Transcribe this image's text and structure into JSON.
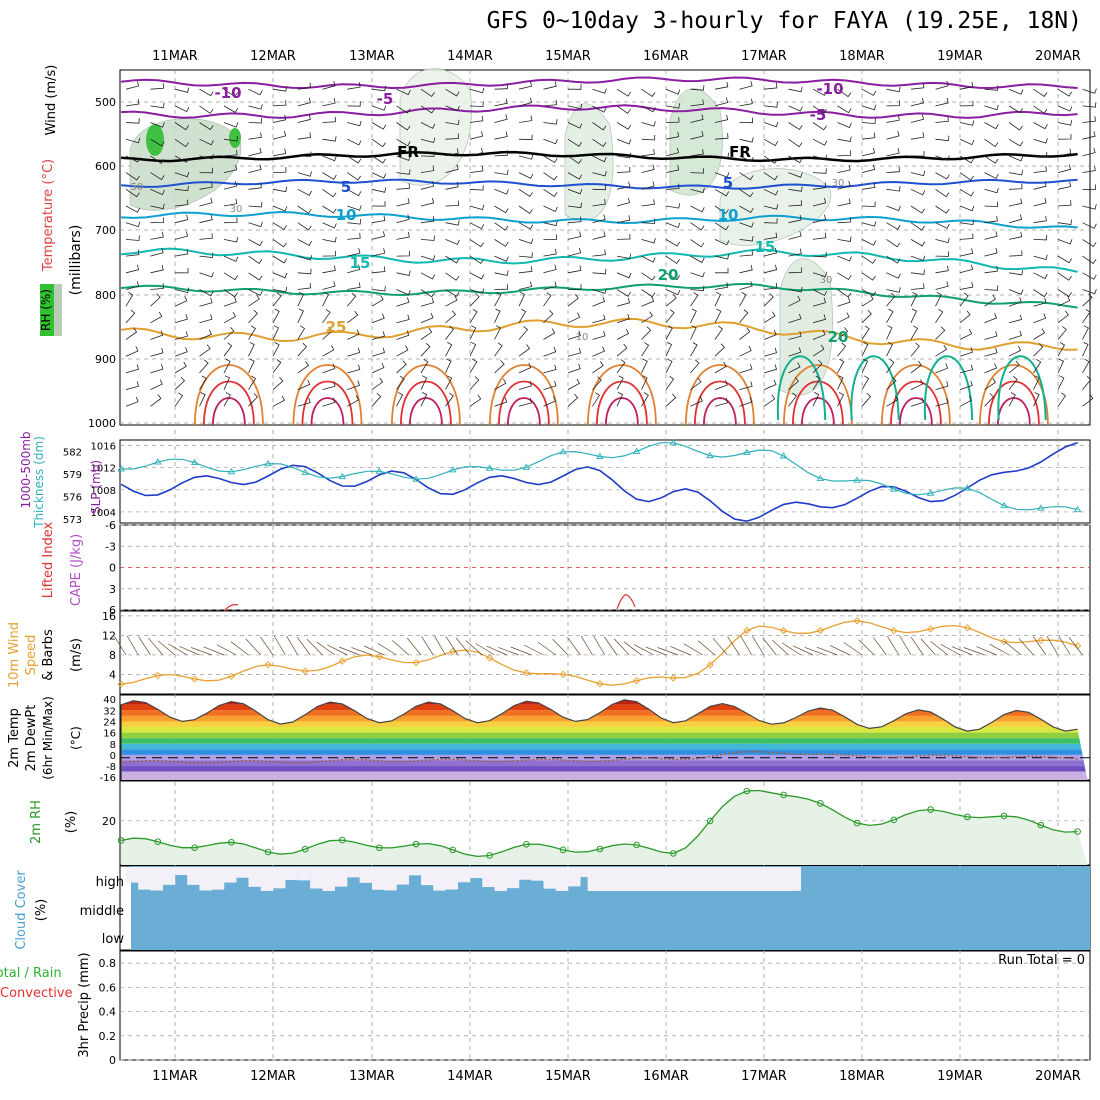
{
  "title": "GFS 0~10day 3-hourly for FAYA (19.25E, 18N)",
  "dates": [
    "11MAR",
    "12MAR",
    "13MAR",
    "14MAR",
    "15MAR",
    "16MAR",
    "17MAR",
    "18MAR",
    "19MAR",
    "20MAR"
  ],
  "colors": {
    "grid": "#999999",
    "slp": "#1e3cc8",
    "thickness": "#2fb0b8",
    "wind": "#e8a030",
    "barb": "#6b4a2a",
    "rh": "#2a9a2a",
    "cloud": "#6aaed6",
    "cloud_clear": "#f4f0f8",
    "li": "#e03030",
    "cape": "#b050c8"
  },
  "panels": {
    "upper": {
      "ylabels": [
        "Wind (m/s)",
        "Temperature (°C)",
        "RH (%)",
        "(millibars)"
      ],
      "ticks": [
        "500",
        "600",
        "700",
        "800",
        "900",
        "1000"
      ],
      "isotherm_labels": [
        "-10",
        "-10",
        "-5",
        "-5",
        "FR",
        "FR",
        "5",
        "5",
        "10",
        "10",
        "15",
        "15",
        "20",
        "20",
        "25"
      ],
      "rh_labels": [
        "50",
        "30",
        "10",
        "30",
        "30"
      ]
    },
    "slp": {
      "ylabels": [
        "1000-500mb",
        "Thickness (dm)",
        "SLP (mb)"
      ],
      "left_ticks": [
        "582",
        "579",
        "576",
        "573"
      ],
      "right_ticks": [
        "1016",
        "1012",
        "1008",
        "1004"
      ]
    },
    "li": {
      "ylabels": [
        "Lifted Index",
        "CAPE (J/kg)"
      ],
      "ticks": [
        "-6",
        "-3",
        "0",
        "3",
        "6"
      ]
    },
    "wind": {
      "ylabels": [
        "10m Wind",
        "Speed",
        "& Barbs",
        "(m/s)"
      ],
      "ticks": [
        "16",
        "12",
        "8",
        "4"
      ]
    },
    "temp": {
      "ylabels": [
        "2m Temp",
        "2m DewPt",
        "(6hr Min/Max)",
        "(°C)"
      ],
      "ticks": [
        "40",
        "32",
        "24",
        "16",
        "8",
        "0",
        "-8",
        "-16"
      ]
    },
    "rh": {
      "ylabels": [
        "2m RH",
        "(%)"
      ],
      "ticks": [
        "20"
      ]
    },
    "cloud": {
      "ylabels": [
        "Cloud Cover",
        "(%)"
      ],
      "ticks": [
        "high",
        "middle",
        "low"
      ]
    },
    "precip": {
      "ylabels": [
        "3hr Precip (mm)",
        "Total / Rain",
        "Convective"
      ],
      "ticks": [
        "0.8",
        "0.6",
        "0.4",
        "0.2",
        "0"
      ],
      "run_total": "Run Total = 0"
    }
  },
  "chart_data": [
    {
      "type": "line",
      "title": "SLP (mb) and 1000-500mb Thickness (dm)",
      "x": [
        "11MAR",
        "12MAR",
        "13MAR",
        "14MAR",
        "15MAR",
        "16MAR",
        "17MAR",
        "18MAR",
        "19MAR",
        "20MAR"
      ],
      "series": [
        {
          "name": "SLP (mb)",
          "values": [
            1008.5,
            1011.0,
            1010.0,
            1008.5,
            1011.0,
            1007.0,
            1003.5,
            1007.0,
            1007.5,
            1015.0
          ],
          "ylim": [
            1002,
            1017
          ]
        },
        {
          "name": "1000-500mb Thickness (dm)",
          "values": [
            580.3,
            579.7,
            578.7,
            579.3,
            581.3,
            582.5,
            581.5,
            577.5,
            576.5,
            574.0
          ],
          "ylim": [
            572.5,
            583.5
          ]
        }
      ]
    },
    {
      "type": "line",
      "title": "Lifted Index",
      "x": [
        "11MAR",
        "12MAR",
        "13MAR",
        "14MAR",
        "15MAR",
        "16MAR",
        "17MAR",
        "18MAR",
        "19MAR",
        "20MAR"
      ],
      "series": [
        {
          "name": "Lifted Index",
          "values": [
            null,
            6.0,
            null,
            null,
            null,
            4.0,
            null,
            null,
            null,
            null
          ]
        }
      ],
      "ylim": [
        6,
        -6
      ]
    },
    {
      "type": "line",
      "title": "10m Wind Speed (m/s)",
      "x": [
        "11MAR",
        "12MAR",
        "13MAR",
        "14MAR",
        "15MAR",
        "16MAR",
        "17MAR",
        "18MAR",
        "19MAR",
        "20MAR"
      ],
      "series": [
        {
          "name": "10m Wind Speed",
          "values": [
            3,
            5,
            7,
            8,
            3,
            2.5,
            13,
            14,
            13,
            10
          ]
        }
      ],
      "ylim": [
        0,
        17
      ]
    },
    {
      "type": "area",
      "title": "2m Temp / 2m DewPt (°C)",
      "x": [
        "11MAR",
        "12MAR",
        "13MAR",
        "14MAR",
        "15MAR",
        "16MAR",
        "17MAR",
        "18MAR",
        "19MAR",
        "20MAR"
      ],
      "series": [
        {
          "name": "2m Temp max",
          "values": [
            39,
            38,
            38,
            38,
            39,
            40,
            35,
            33,
            32,
            32
          ]
        },
        {
          "name": "2m Temp min",
          "values": [
            24,
            22,
            23,
            23,
            24,
            23,
            22,
            19,
            17,
            17
          ]
        },
        {
          "name": "2m DewPt",
          "values": [
            -5,
            -5,
            -4,
            -4,
            -4,
            -3,
            2,
            -1,
            -1,
            -2
          ]
        }
      ],
      "ylim": [
        -18,
        43
      ]
    },
    {
      "type": "area",
      "title": "2m RH (%)",
      "x": [
        "11MAR",
        "12MAR",
        "13MAR",
        "14MAR",
        "15MAR",
        "16MAR",
        "17MAR",
        "18MAR",
        "19MAR",
        "20MAR"
      ],
      "series": [
        {
          "name": "2m RH",
          "values": [
            10,
            7,
            10,
            6,
            8,
            7,
            35,
            20,
            24,
            17
          ]
        }
      ],
      "ylim": [
        0,
        38
      ]
    },
    {
      "type": "bar",
      "title": "3hr Precip (mm)",
      "x": [
        "11MAR",
        "12MAR",
        "13MAR",
        "14MAR",
        "15MAR",
        "16MAR",
        "17MAR",
        "18MAR",
        "19MAR",
        "20MAR"
      ],
      "series": [
        {
          "name": "3hr Precip",
          "values": [
            0,
            0,
            0,
            0,
            0,
            0,
            0,
            0,
            0,
            0
          ]
        }
      ],
      "ylim": [
        0,
        0.9
      ]
    }
  ]
}
